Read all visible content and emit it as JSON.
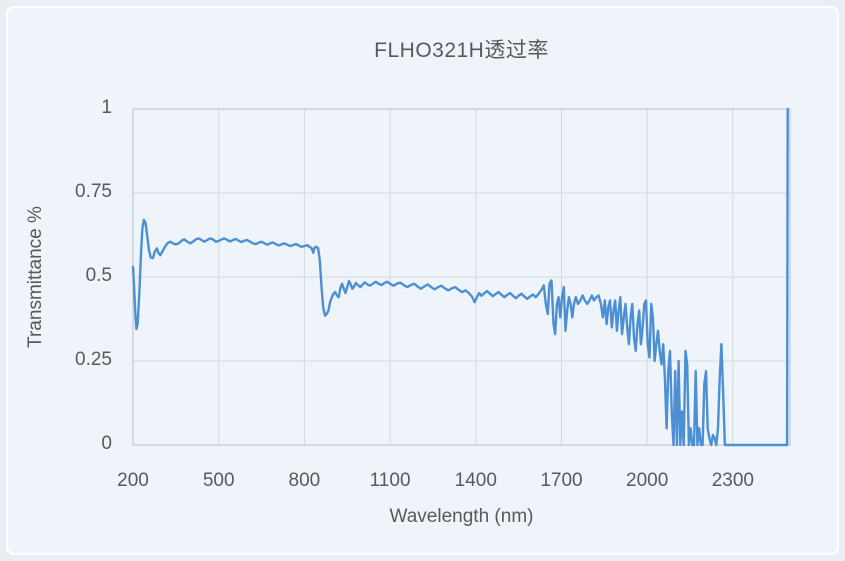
{
  "colors": {
    "page_background": "#e8eef3",
    "card_background": "#eef4f9",
    "card_border": "#ffffff",
    "grid": "#d3d8dc",
    "plot_frame": "#b9bec3",
    "line": "#4d8fd3",
    "text": "#595959"
  },
  "chart_data": {
    "type": "line",
    "title": "FLHO321H透过率",
    "xlabel": "Wavelength (nm)",
    "ylabel": "Transmittance %",
    "xlim": [
      200,
      2500
    ],
    "ylim": [
      0,
      1
    ],
    "xticks": [
      200,
      500,
      800,
      1100,
      1400,
      1700,
      2000,
      2300
    ],
    "yticks": [
      0,
      0.25,
      0.5,
      0.75,
      1
    ],
    "grid": true,
    "legend_position": "none",
    "line_color": "#4d8fd3",
    "series": [
      {
        "name": "FLHO321H transmittance",
        "x": [
          200,
          204,
          208,
          212,
          216,
          222,
          228,
          233,
          238,
          244,
          250,
          256,
          262,
          270,
          276,
          284,
          290,
          296,
          304,
          312,
          320,
          330,
          340,
          350,
          360,
          370,
          380,
          390,
          400,
          410,
          420,
          430,
          440,
          450,
          460,
          470,
          480,
          490,
          500,
          510,
          520,
          530,
          540,
          550,
          560,
          570,
          580,
          590,
          600,
          610,
          620,
          630,
          640,
          650,
          660,
          670,
          680,
          690,
          700,
          710,
          720,
          730,
          740,
          750,
          760,
          770,
          780,
          790,
          800,
          810,
          818,
          826,
          831,
          836,
          842,
          848,
          854,
          860,
          866,
          872,
          878,
          884,
          890,
          896,
          902,
          908,
          914,
          920,
          926,
          932,
          938,
          944,
          950,
          956,
          962,
          968,
          974,
          980,
          988,
          996,
          1004,
          1012,
          1020,
          1030,
          1040,
          1050,
          1060,
          1070,
          1080,
          1090,
          1100,
          1112,
          1124,
          1136,
          1148,
          1160,
          1172,
          1184,
          1196,
          1208,
          1220,
          1232,
          1244,
          1256,
          1268,
          1280,
          1292,
          1304,
          1316,
          1328,
          1340,
          1352,
          1364,
          1376,
          1388,
          1396,
          1404,
          1412,
          1420,
          1430,
          1440,
          1450,
          1460,
          1470,
          1480,
          1490,
          1500,
          1510,
          1520,
          1530,
          1540,
          1550,
          1560,
          1570,
          1580,
          1590,
          1600,
          1610,
          1620,
          1630,
          1638,
          1645,
          1652,
          1658,
          1665,
          1672,
          1678,
          1684,
          1690,
          1696,
          1702,
          1708,
          1714,
          1720,
          1726,
          1732,
          1738,
          1744,
          1750,
          1758,
          1766,
          1774,
          1782,
          1790,
          1798,
          1806,
          1814,
          1822,
          1830,
          1838,
          1845,
          1852,
          1858,
          1864,
          1870,
          1876,
          1882,
          1888,
          1894,
          1900,
          1906,
          1912,
          1918,
          1924,
          1930,
          1936,
          1942,
          1948,
          1954,
          1960,
          1966,
          1972,
          1978,
          1984,
          1990,
          1996,
          2002,
          2008,
          2014,
          2020,
          2026,
          2032,
          2038,
          2044,
          2050,
          2056,
          2062,
          2068,
          2074,
          2080,
          2086,
          2092,
          2098,
          2104,
          2110,
          2116,
          2122,
          2128,
          2134,
          2140,
          2146,
          2152,
          2158,
          2164,
          2170,
          2176,
          2182,
          2188,
          2194,
          2200,
          2206,
          2212,
          2218,
          2224,
          2230,
          2236,
          2242,
          2248,
          2254,
          2260,
          2266,
          2272,
          2280,
          2320,
          2360,
          2400,
          2440,
          2480,
          2490,
          2492
        ],
        "y": [
          0.53,
          0.47,
          0.39,
          0.345,
          0.36,
          0.45,
          0.57,
          0.645,
          0.67,
          0.66,
          0.62,
          0.58,
          0.558,
          0.556,
          0.575,
          0.585,
          0.57,
          0.565,
          0.578,
          0.59,
          0.6,
          0.605,
          0.6,
          0.597,
          0.6,
          0.608,
          0.612,
          0.605,
          0.6,
          0.605,
          0.612,
          0.615,
          0.61,
          0.605,
          0.61,
          0.615,
          0.612,
          0.605,
          0.607,
          0.612,
          0.615,
          0.61,
          0.606,
          0.61,
          0.613,
          0.608,
          0.604,
          0.608,
          0.61,
          0.605,
          0.6,
          0.598,
          0.602,
          0.605,
          0.6,
          0.596,
          0.6,
          0.603,
          0.598,
          0.594,
          0.597,
          0.6,
          0.596,
          0.592,
          0.595,
          0.598,
          0.594,
          0.59,
          0.592,
          0.595,
          0.59,
          0.585,
          0.572,
          0.588,
          0.59,
          0.585,
          0.55,
          0.47,
          0.41,
          0.385,
          0.39,
          0.4,
          0.425,
          0.44,
          0.45,
          0.455,
          0.445,
          0.44,
          0.468,
          0.48,
          0.465,
          0.452,
          0.47,
          0.488,
          0.478,
          0.465,
          0.472,
          0.482,
          0.476,
          0.47,
          0.478,
          0.484,
          0.478,
          0.474,
          0.48,
          0.486,
          0.48,
          0.476,
          0.482,
          0.486,
          0.48,
          0.474,
          0.48,
          0.483,
          0.476,
          0.47,
          0.476,
          0.48,
          0.472,
          0.465,
          0.472,
          0.478,
          0.47,
          0.463,
          0.47,
          0.474,
          0.466,
          0.46,
          0.466,
          0.47,
          0.462,
          0.455,
          0.46,
          0.452,
          0.44,
          0.425,
          0.44,
          0.452,
          0.444,
          0.452,
          0.458,
          0.45,
          0.443,
          0.45,
          0.455,
          0.447,
          0.44,
          0.447,
          0.452,
          0.444,
          0.437,
          0.444,
          0.45,
          0.442,
          0.435,
          0.442,
          0.448,
          0.44,
          0.45,
          0.462,
          0.475,
          0.42,
          0.39,
          0.48,
          0.49,
          0.36,
          0.33,
          0.42,
          0.44,
          0.38,
          0.44,
          0.47,
          0.34,
          0.4,
          0.44,
          0.42,
          0.38,
          0.42,
          0.44,
          0.42,
          0.43,
          0.445,
          0.43,
          0.42,
          0.43,
          0.445,
          0.43,
          0.44,
          0.445,
          0.42,
          0.38,
          0.43,
          0.36,
          0.41,
          0.43,
          0.35,
          0.4,
          0.43,
          0.34,
          0.4,
          0.44,
          0.33,
          0.38,
          0.42,
          0.35,
          0.3,
          0.38,
          0.42,
          0.32,
          0.28,
          0.36,
          0.4,
          0.3,
          0.35,
          0.42,
          0.43,
          0.3,
          0.26,
          0.42,
          0.38,
          0.25,
          0.3,
          0.34,
          0.28,
          0.24,
          0.3,
          0.2,
          0.05,
          0.22,
          0.28,
          0.1,
          0,
          0.22,
          0,
          0.25,
          0,
          0.1,
          0,
          0.28,
          0.24,
          0,
          0.05,
          0,
          0,
          0.22,
          0,
          0.05,
          0,
          0,
          0.18,
          0.22,
          0.05,
          0.02,
          0,
          0.03,
          0.02,
          0,
          0.05,
          0.2,
          0.3,
          0.15,
          0,
          0,
          0,
          0,
          0,
          0,
          0,
          0,
          1
        ]
      }
    ]
  }
}
